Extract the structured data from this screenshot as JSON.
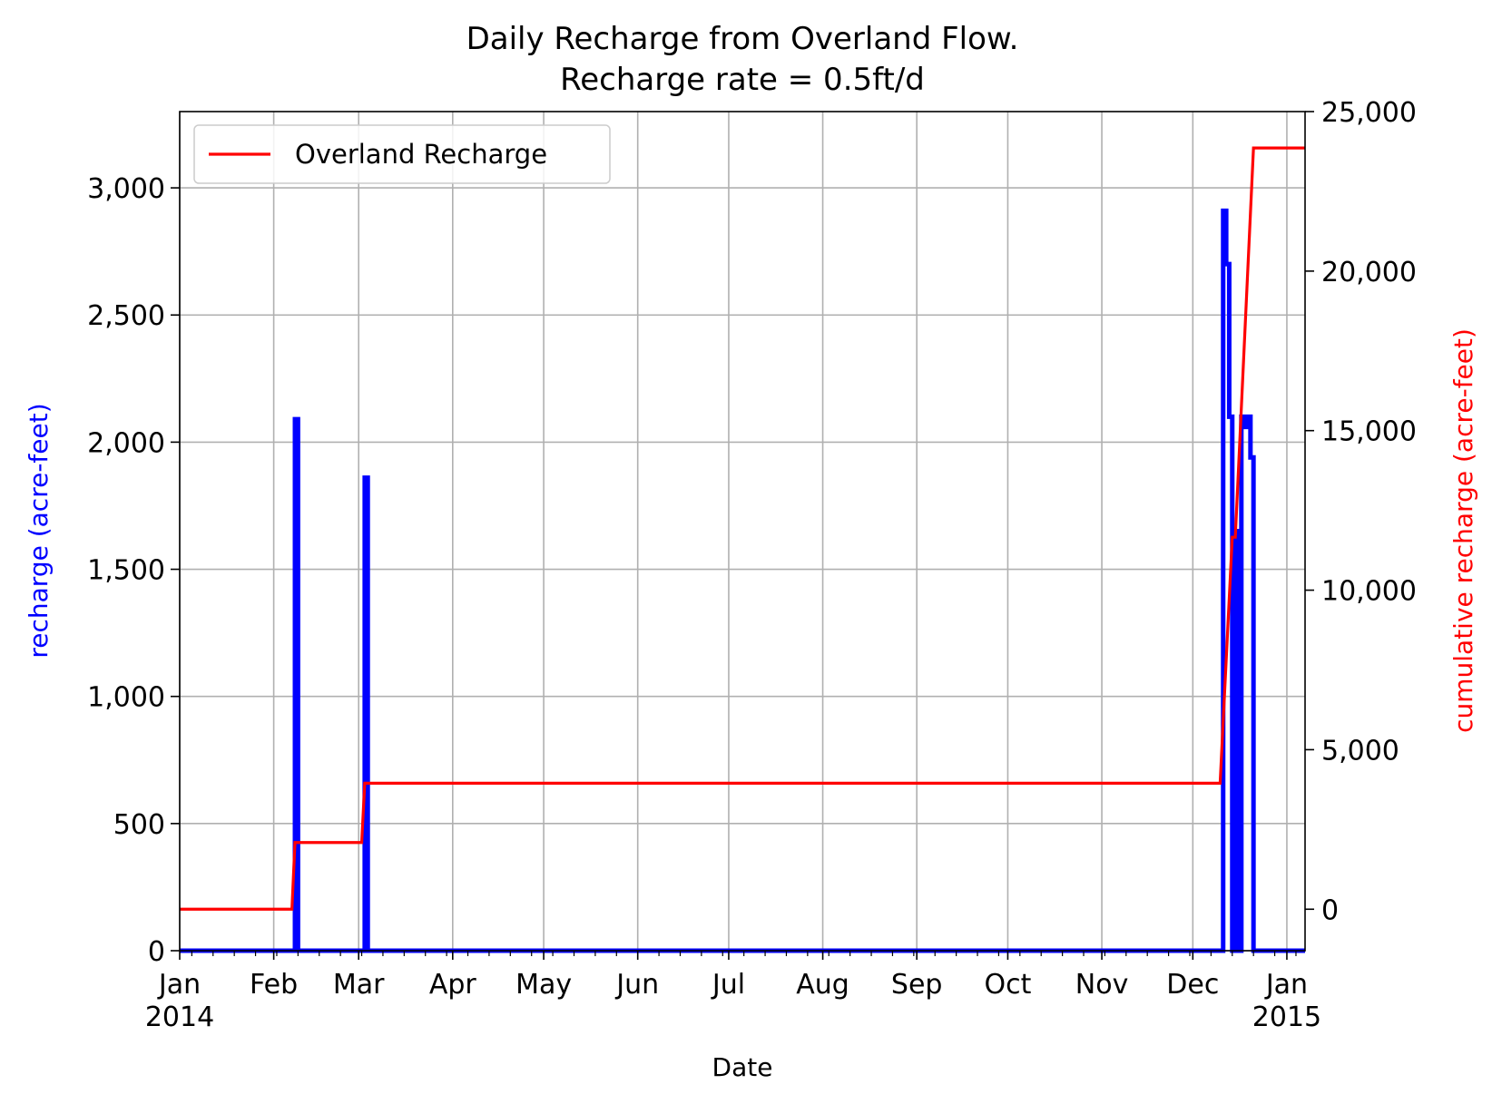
{
  "chart_data": {
    "type": "line",
    "title": "Daily Recharge from Overland Flow.",
    "subtitle": "Recharge rate = 0.5ft/d",
    "xlabel": "Date",
    "ylabel_left": "recharge (acre-feet)",
    "ylabel_right": "cumulative recharge (acre-feet)",
    "xlim": [
      "2014-01-01",
      "2015-01-07"
    ],
    "ylim_left": [
      0,
      3300
    ],
    "ylim_right": [
      -1300,
      25000
    ],
    "grid": true,
    "legend_position": "top-left",
    "x_ticks": [
      {
        "date": "2014-01-01",
        "label": "Jan",
        "year": "2014"
      },
      {
        "date": "2014-02-01",
        "label": "Feb",
        "year": ""
      },
      {
        "date": "2014-03-01",
        "label": "Mar",
        "year": ""
      },
      {
        "date": "2014-04-01",
        "label": "Apr",
        "year": ""
      },
      {
        "date": "2014-05-01",
        "label": "May",
        "year": ""
      },
      {
        "date": "2014-06-01",
        "label": "Jun",
        "year": ""
      },
      {
        "date": "2014-07-01",
        "label": "Jul",
        "year": ""
      },
      {
        "date": "2014-08-01",
        "label": "Aug",
        "year": ""
      },
      {
        "date": "2014-09-01",
        "label": "Sep",
        "year": ""
      },
      {
        "date": "2014-10-01",
        "label": "Oct",
        "year": ""
      },
      {
        "date": "2014-11-01",
        "label": "Nov",
        "year": ""
      },
      {
        "date": "2014-12-01",
        "label": "Dec",
        "year": ""
      },
      {
        "date": "2015-01-01",
        "label": "Jan",
        "year": "2015"
      }
    ],
    "y_ticks_left": [
      {
        "value": 0,
        "label": "0"
      },
      {
        "value": 500,
        "label": "500"
      },
      {
        "value": 1000,
        "label": "1,000"
      },
      {
        "value": 1500,
        "label": "1,500"
      },
      {
        "value": 2000,
        "label": "2,000"
      },
      {
        "value": 2500,
        "label": "2,500"
      },
      {
        "value": 3000,
        "label": "3,000"
      }
    ],
    "y_ticks_right": [
      {
        "value": 0,
        "label": "0"
      },
      {
        "value": 5000,
        "label": "5,000"
      },
      {
        "value": 10000,
        "label": "10,000"
      },
      {
        "value": 15000,
        "label": "15,000"
      },
      {
        "value": 20000,
        "label": "20,000"
      },
      {
        "value": 25000,
        "label": "25,000"
      }
    ],
    "series": [
      {
        "axis": "left",
        "color": "#0000ff",
        "points": [
          [
            "2014-01-01",
            0
          ],
          [
            "2014-02-08",
            0
          ],
          [
            "2014-02-08",
            2090
          ],
          [
            "2014-02-09",
            2090
          ],
          [
            "2014-02-09",
            0
          ],
          [
            "2014-03-03",
            0
          ],
          [
            "2014-03-03",
            1860
          ],
          [
            "2014-03-04",
            1860
          ],
          [
            "2014-03-04",
            0
          ],
          [
            "2014-12-11",
            0
          ],
          [
            "2014-12-11",
            2910
          ],
          [
            "2014-12-12",
            2910
          ],
          [
            "2014-12-12",
            2700
          ],
          [
            "2014-12-13",
            2700
          ],
          [
            "2014-12-13",
            2100
          ],
          [
            "2014-12-14",
            2100
          ],
          [
            "2014-12-14",
            0
          ],
          [
            "2014-12-15",
            0
          ],
          [
            "2014-12-15",
            1650
          ],
          [
            "2014-12-16",
            1650
          ],
          [
            "2014-12-16",
            0
          ],
          [
            "2014-12-17",
            0
          ],
          [
            "2014-12-17",
            2100
          ],
          [
            "2014-12-18",
            2100
          ],
          [
            "2014-12-18",
            2060
          ],
          [
            "2014-12-19",
            2060
          ],
          [
            "2014-12-19",
            2100
          ],
          [
            "2014-12-20",
            2100
          ],
          [
            "2014-12-20",
            1940
          ],
          [
            "2014-12-21",
            1940
          ],
          [
            "2014-12-21",
            0
          ],
          [
            "2015-01-07",
            0
          ]
        ]
      },
      {
        "axis": "right",
        "name": "Overland Recharge",
        "color": "#ff0000",
        "points": [
          [
            "2014-01-01",
            0
          ],
          [
            "2014-02-07",
            0
          ],
          [
            "2014-02-08",
            2090
          ],
          [
            "2014-03-02",
            2090
          ],
          [
            "2014-03-03",
            3950
          ],
          [
            "2014-12-10",
            3950
          ],
          [
            "2014-12-14",
            11660
          ],
          [
            "2014-12-15",
            11660
          ],
          [
            "2014-12-21",
            23860
          ],
          [
            "2015-01-07",
            23860
          ]
        ]
      }
    ]
  }
}
